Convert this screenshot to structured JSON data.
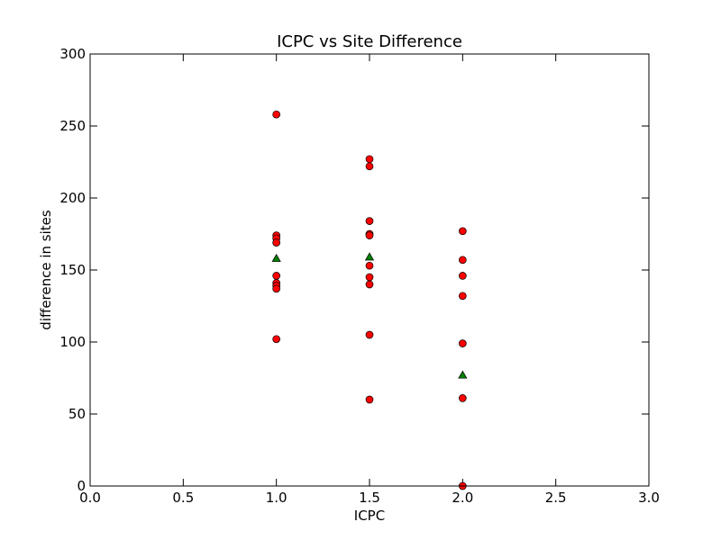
{
  "chart_data": {
    "type": "scatter",
    "title": "ICPC vs Site Difference",
    "xlabel": "ICPC",
    "ylabel": "difference in sites",
    "xlim": [
      0.0,
      3.0
    ],
    "ylim": [
      0,
      300
    ],
    "xticks": [
      "0.0",
      "0.5",
      "1.0",
      "1.5",
      "2.0",
      "2.5",
      "3.0"
    ],
    "yticks": [
      "0",
      "50",
      "100",
      "150",
      "200",
      "250",
      "300"
    ],
    "grid": false,
    "legend": "none",
    "series": [
      {
        "marker": "circle",
        "color": "#ff0000",
        "points": [
          [
            1.0,
            258
          ],
          [
            1.0,
            174
          ],
          [
            1.0,
            172
          ],
          [
            1.0,
            169
          ],
          [
            1.0,
            146
          ],
          [
            1.0,
            141
          ],
          [
            1.0,
            139
          ],
          [
            1.0,
            137
          ],
          [
            1.0,
            102
          ],
          [
            1.5,
            227
          ],
          [
            1.5,
            222
          ],
          [
            1.5,
            184
          ],
          [
            1.5,
            175
          ],
          [
            1.5,
            174
          ],
          [
            1.5,
            153
          ],
          [
            1.5,
            145
          ],
          [
            1.5,
            140
          ],
          [
            1.5,
            105
          ],
          [
            1.5,
            60
          ],
          [
            2.0,
            177
          ],
          [
            2.0,
            157
          ],
          [
            2.0,
            146
          ],
          [
            2.0,
            132
          ],
          [
            2.0,
            99
          ],
          [
            2.0,
            61
          ],
          [
            2.0,
            0
          ]
        ]
      },
      {
        "marker": "triangle",
        "color": "#007f00",
        "points": [
          [
            1.0,
            158
          ],
          [
            1.5,
            159
          ],
          [
            2.0,
            77
          ]
        ]
      }
    ]
  }
}
